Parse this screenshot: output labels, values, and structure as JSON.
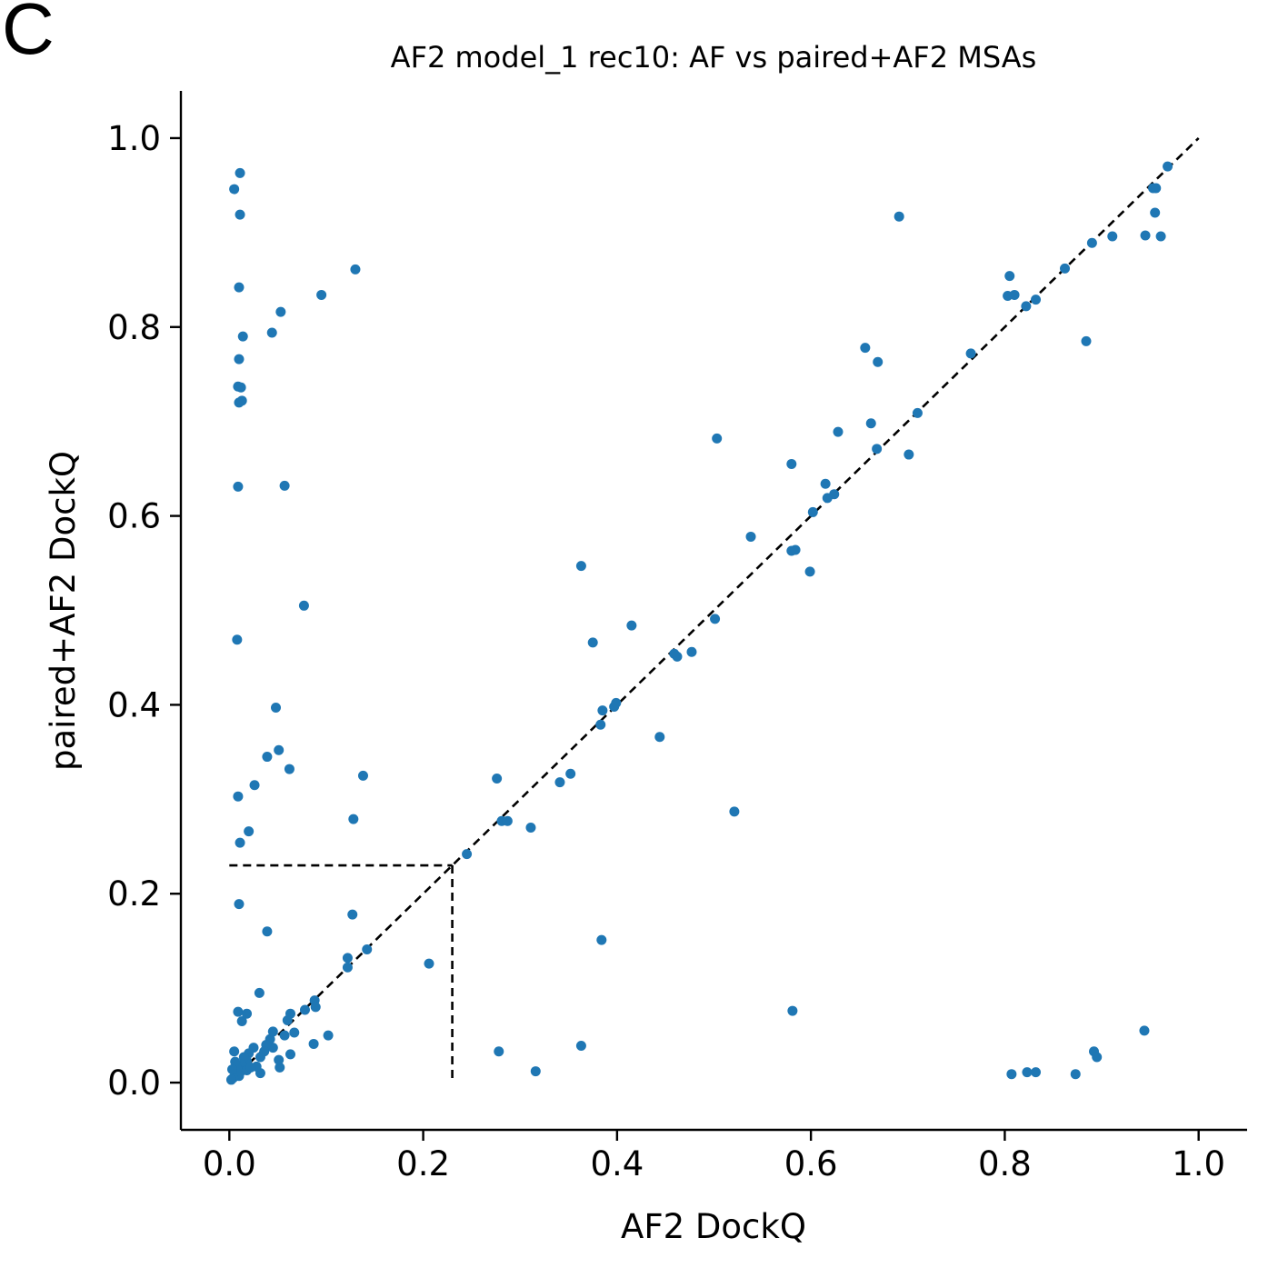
{
  "panel_letter": "C",
  "chart_data": {
    "type": "scatter",
    "title": "AF2 model_1 rec10: AF vs paired+AF2 MSAs",
    "xlabel": "AF2 DockQ",
    "ylabel": "paired+AF2 DockQ",
    "xlim": [
      -0.05,
      1.05
    ],
    "ylim": [
      -0.05,
      1.05
    ],
    "xticks": [
      "0.0",
      "0.2",
      "0.4",
      "0.6",
      "0.8",
      "1.0"
    ],
    "yticks": [
      "0.0",
      "0.2",
      "0.4",
      "0.6",
      "0.8",
      "1.0"
    ],
    "grid": false,
    "point_color": "#1f77b4",
    "diagonal": {
      "from": [
        0,
        0
      ],
      "to": [
        1,
        1
      ],
      "style": "dashed"
    },
    "threshold": 0.23,
    "points": [
      [
        0.005,
        0.946
      ],
      [
        0.011,
        0.963
      ],
      [
        0.011,
        0.919
      ],
      [
        0.01,
        0.842
      ],
      [
        0.014,
        0.79
      ],
      [
        0.01,
        0.766
      ],
      [
        0.009,
        0.737
      ],
      [
        0.012,
        0.736
      ],
      [
        0.01,
        0.72
      ],
      [
        0.013,
        0.722
      ],
      [
        0.009,
        0.631
      ],
      [
        0.008,
        0.469
      ],
      [
        0.009,
        0.303
      ],
      [
        0.011,
        0.254
      ],
      [
        0.02,
        0.266
      ],
      [
        0.026,
        0.315
      ],
      [
        0.039,
        0.345
      ],
      [
        0.048,
        0.397
      ],
      [
        0.051,
        0.352
      ],
      [
        0.062,
        0.332
      ],
      [
        0.044,
        0.794
      ],
      [
        0.053,
        0.816
      ],
      [
        0.057,
        0.632
      ],
      [
        0.077,
        0.505
      ],
      [
        0.095,
        0.834
      ],
      [
        0.13,
        0.861
      ],
      [
        0.128,
        0.279
      ],
      [
        0.138,
        0.325
      ],
      [
        0.01,
        0.189
      ],
      [
        0.039,
        0.16
      ],
      [
        0.127,
        0.178
      ],
      [
        0.122,
        0.132
      ],
      [
        0.122,
        0.122
      ],
      [
        0.142,
        0.141
      ],
      [
        0.206,
        0.126
      ],
      [
        0.009,
        0.075
      ],
      [
        0.013,
        0.065
      ],
      [
        0.018,
        0.073
      ],
      [
        0.031,
        0.095
      ],
      [
        0.063,
        0.073
      ],
      [
        0.078,
        0.077
      ],
      [
        0.088,
        0.087
      ],
      [
        0.089,
        0.08
      ],
      [
        0.102,
        0.05
      ],
      [
        0.087,
        0.041
      ],
      [
        0.067,
        0.053
      ],
      [
        0.063,
        0.03
      ],
      [
        0.052,
        0.016
      ],
      [
        0.051,
        0.024
      ],
      [
        0.045,
        0.037
      ],
      [
        0.042,
        0.046
      ],
      [
        0.038,
        0.04
      ],
      [
        0.036,
        0.033
      ],
      [
        0.032,
        0.027
      ],
      [
        0.032,
        0.01
      ],
      [
        0.028,
        0.017
      ],
      [
        0.025,
        0.037
      ],
      [
        0.02,
        0.031
      ],
      [
        0.018,
        0.023
      ],
      [
        0.015,
        0.027
      ],
      [
        0.013,
        0.019
      ],
      [
        0.012,
        0.012
      ],
      [
        0.01,
        0.007
      ],
      [
        0.008,
        0.015
      ],
      [
        0.006,
        0.022
      ],
      [
        0.005,
        0.033
      ],
      [
        0.004,
        0.005
      ],
      [
        0.003,
        0.014
      ],
      [
        0.002,
        0.003
      ],
      [
        0.018,
        0.013
      ],
      [
        0.022,
        0.016
      ],
      [
        0.045,
        0.054
      ],
      [
        0.057,
        0.05
      ],
      [
        0.06,
        0.066
      ],
      [
        0.245,
        0.242
      ],
      [
        0.276,
        0.322
      ],
      [
        0.281,
        0.277
      ],
      [
        0.287,
        0.277
      ],
      [
        0.311,
        0.27
      ],
      [
        0.341,
        0.318
      ],
      [
        0.352,
        0.327
      ],
      [
        0.363,
        0.547
      ],
      [
        0.375,
        0.466
      ],
      [
        0.383,
        0.379
      ],
      [
        0.385,
        0.394
      ],
      [
        0.397,
        0.398
      ],
      [
        0.399,
        0.402
      ],
      [
        0.415,
        0.484
      ],
      [
        0.444,
        0.366
      ],
      [
        0.459,
        0.454
      ],
      [
        0.462,
        0.451
      ],
      [
        0.477,
        0.456
      ],
      [
        0.501,
        0.491
      ],
      [
        0.503,
        0.682
      ],
      [
        0.521,
        0.287
      ],
      [
        0.538,
        0.578
      ],
      [
        0.58,
        0.655
      ],
      [
        0.58,
        0.563
      ],
      [
        0.584,
        0.564
      ],
      [
        0.599,
        0.541
      ],
      [
        0.602,
        0.604
      ],
      [
        0.615,
        0.634
      ],
      [
        0.617,
        0.619
      ],
      [
        0.624,
        0.623
      ],
      [
        0.628,
        0.689
      ],
      [
        0.656,
        0.778
      ],
      [
        0.662,
        0.698
      ],
      [
        0.668,
        0.671
      ],
      [
        0.669,
        0.763
      ],
      [
        0.691,
        0.917
      ],
      [
        0.701,
        0.665
      ],
      [
        0.71,
        0.709
      ],
      [
        0.765,
        0.772
      ],
      [
        0.805,
        0.854
      ],
      [
        0.803,
        0.833
      ],
      [
        0.81,
        0.834
      ],
      [
        0.822,
        0.822
      ],
      [
        0.832,
        0.829
      ],
      [
        0.862,
        0.862
      ],
      [
        0.884,
        0.785
      ],
      [
        0.89,
        0.889
      ],
      [
        0.911,
        0.896
      ],
      [
        0.945,
        0.897
      ],
      [
        0.953,
        0.947
      ],
      [
        0.956,
        0.947
      ],
      [
        0.955,
        0.921
      ],
      [
        0.961,
        0.896
      ],
      [
        0.968,
        0.97
      ],
      [
        0.278,
        0.033
      ],
      [
        0.316,
        0.012
      ],
      [
        0.363,
        0.039
      ],
      [
        0.384,
        0.151
      ],
      [
        0.581,
        0.076
      ],
      [
        0.807,
        0.009
      ],
      [
        0.823,
        0.011
      ],
      [
        0.832,
        0.011
      ],
      [
        0.873,
        0.009
      ],
      [
        0.892,
        0.033
      ],
      [
        0.895,
        0.027
      ],
      [
        0.944,
        0.055
      ]
    ]
  }
}
